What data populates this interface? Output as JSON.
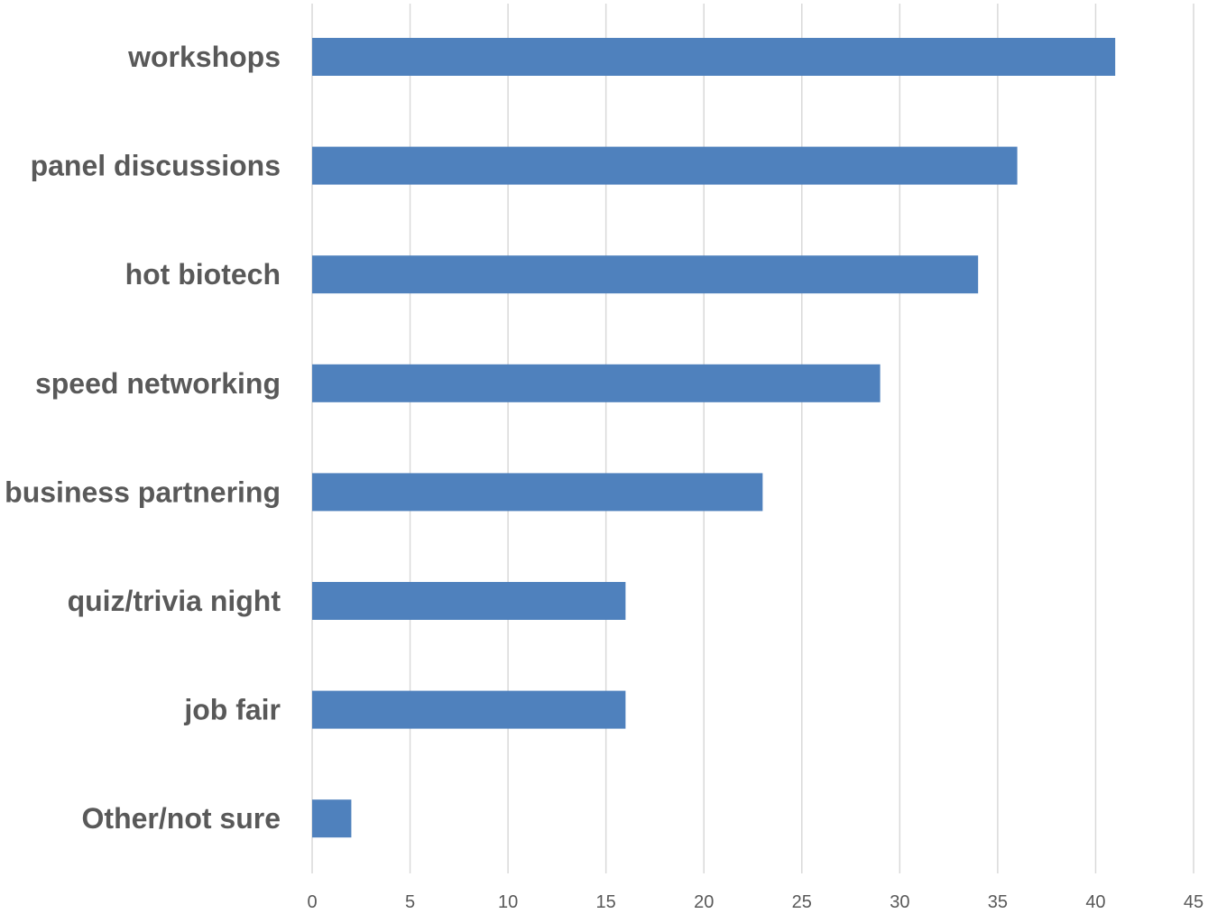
{
  "chart_data": {
    "type": "bar",
    "orientation": "horizontal",
    "categories": [
      "workshops",
      "panel discussions",
      "hot biotech",
      "speed networking",
      "business partnering",
      "quiz/trivia night",
      "job fair",
      "Other/not sure"
    ],
    "values": [
      41,
      36,
      34,
      29,
      23,
      16,
      16,
      2
    ],
    "xlim": [
      0,
      45
    ],
    "xticks": [
      "0",
      "5",
      "10",
      "15",
      "20",
      "25",
      "30",
      "35",
      "40",
      "45"
    ],
    "grid": true,
    "bar_color": "#4f81bd",
    "title": "",
    "xlabel": "",
    "ylabel": ""
  }
}
